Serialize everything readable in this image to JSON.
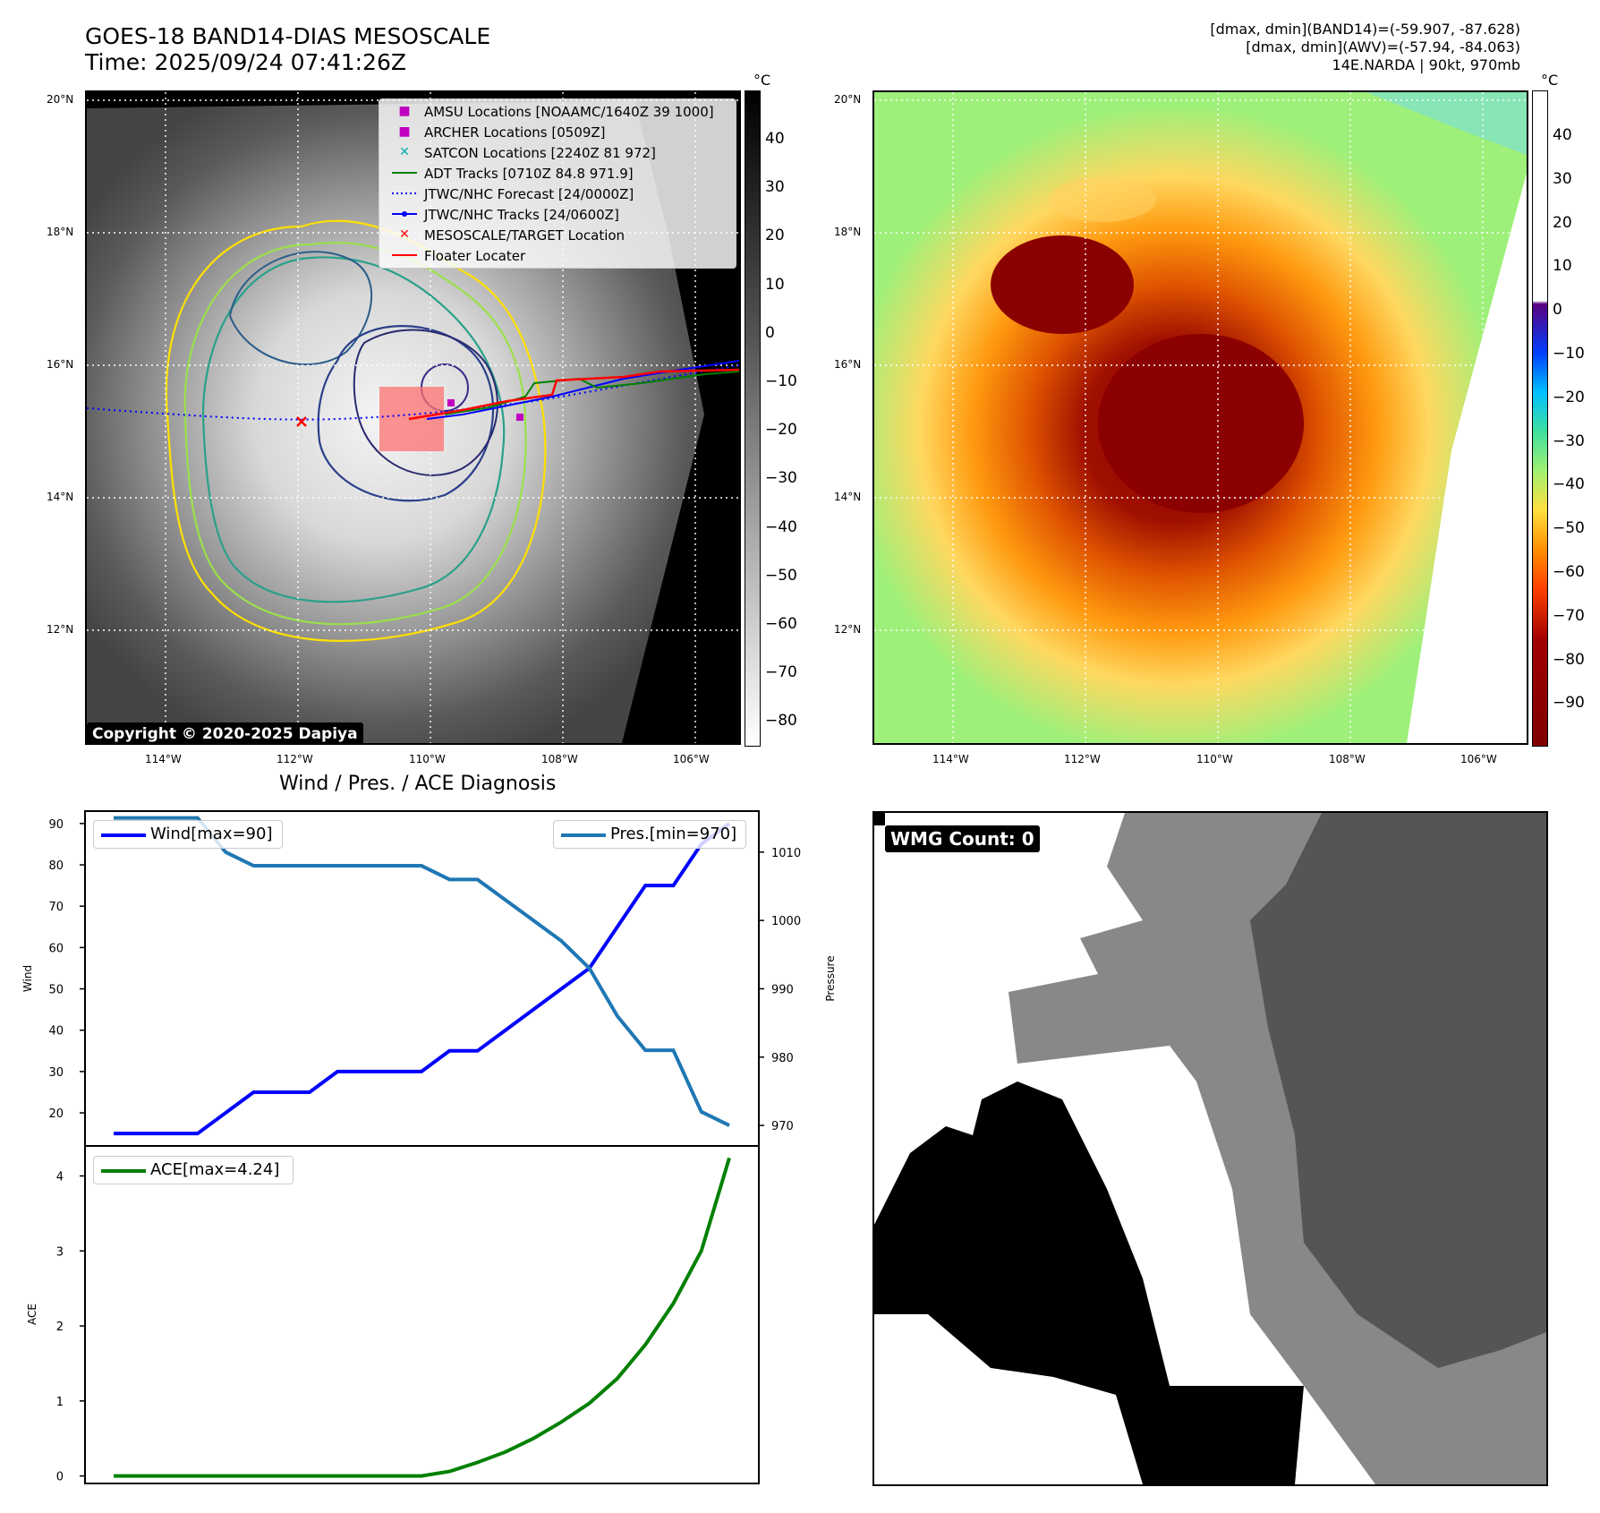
{
  "header": {
    "title_line1": "GOES-18 BAND14-DIAS MESOSCALE",
    "title_line2": "Time: 2025/09/24 07:41:26Z",
    "info_line1": "[dmax, dmin](BAND14)=(-59.907, -87.628)",
    "info_line2": "[dmax, dmin](AWV)=(-57.94, -84.063)",
    "info_line3": "14E.NARDA | 90kt, 970mb"
  },
  "map": {
    "lat_labels": [
      "20°N",
      "18°N",
      "16°N",
      "14°N",
      "12°N"
    ],
    "lon_labels": [
      "114°W",
      "112°W",
      "110°W",
      "108°W",
      "106°W"
    ],
    "copyright": "Copyright © 2020-2025 Dapiya",
    "colorbar_unit": "°C",
    "left_colorbar_ticks": [
      "40",
      "30",
      "20",
      "10",
      "0",
      "−10",
      "−20",
      "−30",
      "−40",
      "−50",
      "−60",
      "−70",
      "−80"
    ],
    "right_colorbar_ticks": [
      "40",
      "30",
      "20",
      "10",
      "0",
      "−10",
      "−20",
      "−30",
      "−40",
      "−50",
      "−60",
      "−70",
      "−80",
      "−90"
    ],
    "legend": [
      {
        "label": "AMSU Locations [NOAAMC/1640Z 39 1000]",
        "marker": "square",
        "color": "#c000c0"
      },
      {
        "label": "ARCHER Locations [0509Z]",
        "marker": "square",
        "color": "#c000c0"
      },
      {
        "label": "SATCON Locations [2240Z 81 972]",
        "marker": "x",
        "color": "#00b0b0"
      },
      {
        "label": "ADT Tracks [0710Z 84.8 971.9]",
        "marker": "line",
        "color": "#008000"
      },
      {
        "label": "JTWC/NHC Forecast [24/0000Z]",
        "marker": "dotted",
        "color": "#0000ff"
      },
      {
        "label": "JTWC/NHC Tracks [24/0600Z]",
        "marker": "line-dot",
        "color": "#0000ff"
      },
      {
        "label": "MESOSCALE/TARGET Location",
        "marker": "x",
        "color": "#ff0000"
      },
      {
        "label": "Floater Locater",
        "marker": "line",
        "color": "#ff0000"
      }
    ]
  },
  "chart_data": [
    {
      "type": "line",
      "title": "Wind / Pres. / ACE Diagnosis",
      "ylabel": "Wind",
      "ylabel_right": "Pressure",
      "ylim": [
        12,
        93
      ],
      "ylim_right": [
        967,
        1016
      ],
      "yticks": [
        20,
        30,
        40,
        50,
        60,
        70,
        80,
        90
      ],
      "yticks_right": [
        970,
        980,
        990,
        1000,
        1010
      ],
      "series": [
        {
          "name": "Wind[max=90]",
          "color": "#0000ff",
          "axis": "left",
          "values": [
            15,
            15,
            15,
            15,
            20,
            25,
            25,
            25,
            30,
            30,
            30,
            30,
            35,
            35,
            40,
            45,
            50,
            55,
            65,
            75,
            75,
            85,
            90
          ]
        },
        {
          "name": "Pres.[min=970]",
          "color": "#1f77b4",
          "axis": "right",
          "values": [
            1015,
            1015,
            1015,
            1015,
            1010,
            1008,
            1008,
            1008,
            1008,
            1008,
            1008,
            1008,
            1006,
            1006,
            1003,
            1000,
            997,
            993,
            986,
            981,
            981,
            972,
            970
          ]
        }
      ]
    },
    {
      "type": "line",
      "ylabel": "ACE",
      "ylim": [
        -0.1,
        4.4
      ],
      "yticks": [
        0,
        1,
        2,
        3,
        4
      ],
      "series": [
        {
          "name": "ACE[max=4.24]",
          "color": "#008000",
          "values": [
            0,
            0,
            0,
            0,
            0,
            0,
            0,
            0,
            0,
            0,
            0,
            0,
            0.06,
            0.18,
            0.32,
            0.5,
            0.72,
            0.97,
            1.3,
            1.75,
            2.3,
            3.0,
            4.24
          ]
        }
      ]
    }
  ],
  "wmg": {
    "label": "WMG Count: 0"
  }
}
